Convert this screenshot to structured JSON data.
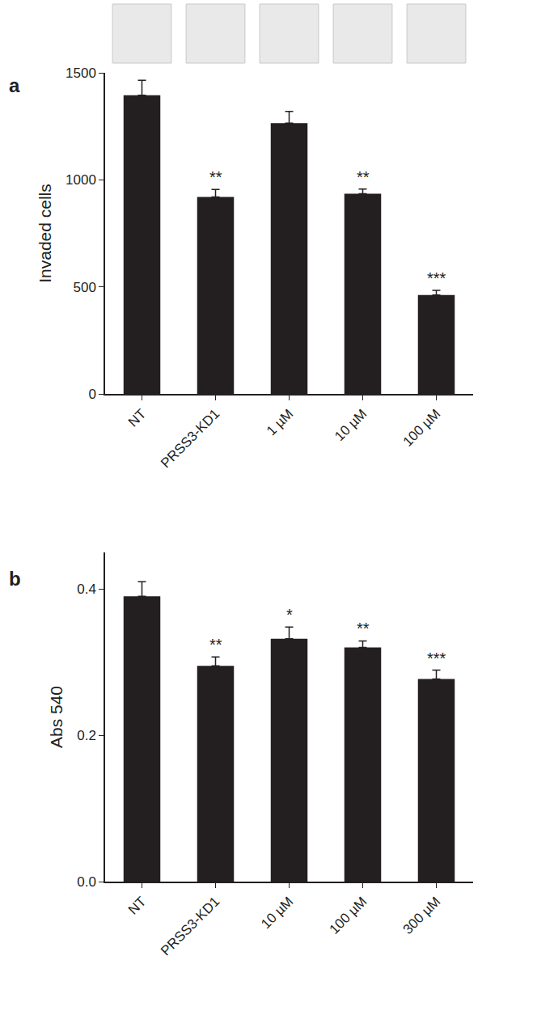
{
  "chart_data": [
    {
      "type": "bar",
      "title": "a",
      "y_label": "Invaded cells",
      "categories": [
        "NT",
        "PRSS3-KD1",
        "1 µM",
        "10 µM",
        "100 µM"
      ],
      "values": [
        1395,
        920,
        1265,
        935,
        462
      ],
      "errors": [
        70,
        35,
        55,
        22,
        22
      ],
      "annotations": [
        null,
        "**",
        null,
        "**",
        "***"
      ],
      "color": "#231f20",
      "ylim": [
        0,
        1500
      ],
      "yticks": [
        0,
        500,
        1000,
        1500
      ],
      "grid": false
    },
    {
      "type": "bar",
      "title": "b",
      "y_label": "Abs 540",
      "categories": [
        "NT",
        "PRSS3-KD1",
        "10 µM",
        "100 µM",
        "300 µM"
      ],
      "values": [
        0.39,
        0.295,
        0.332,
        0.32,
        0.277
      ],
      "errors": [
        0.02,
        0.012,
        0.016,
        0.009,
        0.012
      ],
      "annotations": [
        null,
        "**",
        "*",
        "**",
        "***"
      ],
      "color": "#231f20",
      "ylim": [
        0,
        0.45
      ],
      "yticks": [
        {
          "value": 0,
          "label": "0.0"
        },
        0.2,
        0.4
      ],
      "grid": false
    }
  ]
}
